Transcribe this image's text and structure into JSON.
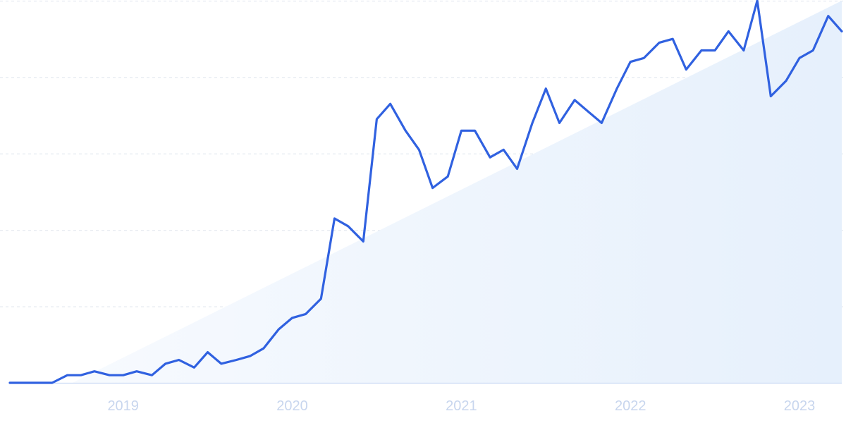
{
  "colors": {
    "line": "#3061e0",
    "trend_fill_start": "#f7fafe",
    "trend_fill_end": "#e6f0fc",
    "grid": "#dde3ec",
    "tick_text": "#c8d6ee"
  },
  "chart_data": {
    "type": "line",
    "title": "",
    "xlabel": "",
    "ylabel": "",
    "x_tick_labels": [
      "2019",
      "2020",
      "2021",
      "2022",
      "2023"
    ],
    "x_ticks": [
      2019.0,
      2020.0,
      2021.0,
      2022.0,
      2023.0
    ],
    "xlim": [
      2018.33,
      2023.25
    ],
    "ylim": [
      0,
      100
    ],
    "grid": true,
    "y_gridlines": [
      0,
      20,
      40,
      60,
      80,
      100
    ],
    "legend": "none",
    "trend": {
      "x": [
        2018.7,
        2023.25
      ],
      "y": [
        0,
        100
      ]
    },
    "series": [
      {
        "x": [
          2018.33,
          2018.42,
          2018.5,
          2018.58,
          2018.67,
          2018.75,
          2018.83,
          2018.92,
          2019.0,
          2019.08,
          2019.17,
          2019.25,
          2019.33,
          2019.42,
          2019.5,
          2019.58,
          2019.67,
          2019.75,
          2019.83,
          2019.92,
          2020.0,
          2020.08,
          2020.17,
          2020.25,
          2020.33,
          2020.42,
          2020.5,
          2020.58,
          2020.67,
          2020.75,
          2020.83,
          2020.92,
          2021.0,
          2021.08,
          2021.17,
          2021.25,
          2021.33,
          2021.42,
          2021.5,
          2021.58,
          2021.67,
          2021.75,
          2021.83,
          2021.92,
          2022.0,
          2022.08,
          2022.17,
          2022.25,
          2022.33,
          2022.42,
          2022.5,
          2022.58,
          2022.67,
          2022.75,
          2022.83,
          2022.92,
          2023.0,
          2023.08,
          2023.17,
          2023.25
        ],
        "values": [
          0,
          0,
          0,
          0,
          2,
          2,
          3,
          2,
          2,
          3,
          2,
          5,
          6,
          4,
          8,
          5,
          6,
          7,
          9,
          14,
          17,
          18,
          22,
          43,
          41,
          37,
          69,
          73,
          66,
          61,
          51,
          54,
          66,
          66,
          59,
          61,
          56,
          68,
          77,
          68,
          74,
          71,
          68,
          77,
          84,
          85,
          89,
          90,
          82,
          87,
          87,
          92,
          87,
          100,
          75,
          79,
          85,
          87,
          96,
          92
        ]
      }
    ]
  }
}
